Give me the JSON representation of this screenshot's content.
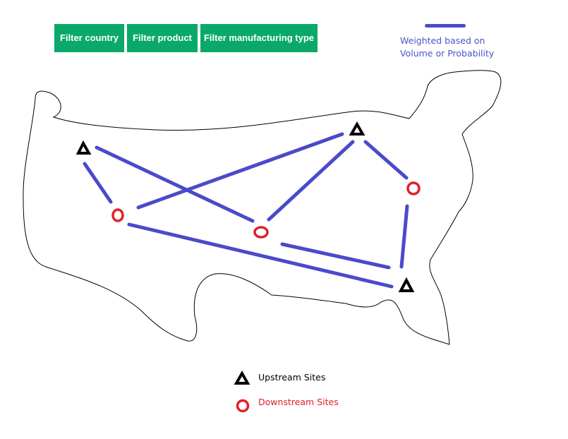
{
  "filters": {
    "country_label": "Filter country",
    "product_label": "Filter product",
    "manufacturing_type_label": "Filter manufacturing type"
  },
  "weight_legend": {
    "line1": "Weighted based on",
    "line2": "Volume or Probability",
    "color": "#4a4acb"
  },
  "legend": {
    "upstream_label": "Upstream Sites",
    "downstream_label": "Downstream Sites",
    "upstream_color": "#000000",
    "downstream_color": "#e0202a"
  },
  "colors": {
    "button_bg": "#0aa96a",
    "button_text": "#ffffff",
    "connection": "#4a4acb",
    "outline": "#000000"
  }
}
